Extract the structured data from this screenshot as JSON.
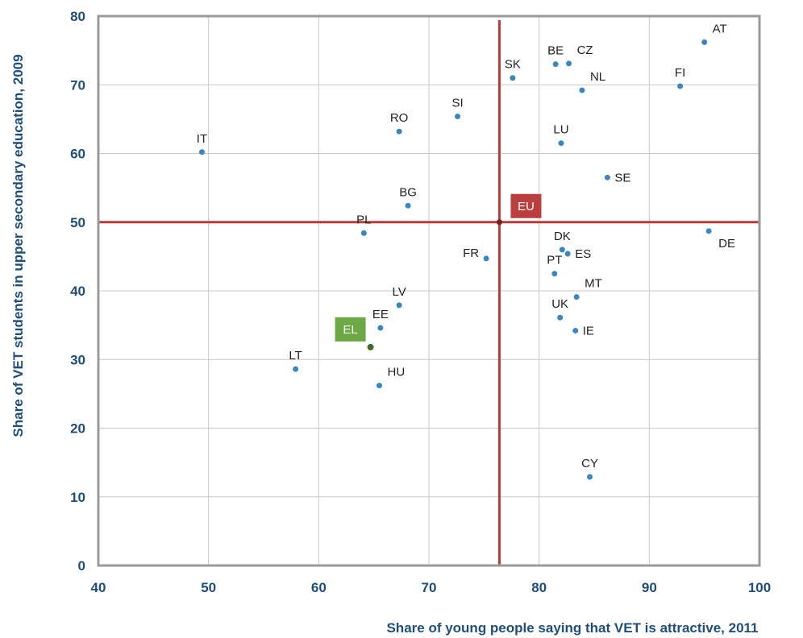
{
  "chart_data": {
    "type": "scatter",
    "title": "",
    "xlabel": "Share of young people saying that VET is attractive, 2011",
    "ylabel": "Share of VET students in upper secondary education, 2009",
    "xlim": [
      40,
      100
    ],
    "ylim": [
      0,
      80
    ],
    "x_ticks": [
      40,
      50,
      60,
      70,
      80,
      90,
      100
    ],
    "y_ticks": [
      0,
      10,
      20,
      30,
      40,
      50,
      60,
      70,
      80
    ],
    "grid": true,
    "reference_lines": {
      "x": 76.4,
      "y": 50
    },
    "colors": {
      "points": "#3a87c0",
      "reference": "#c0393b",
      "el_badge": "#6ca844",
      "el_point": "#3b6e2a",
      "axis_text": "#1f4e79",
      "grid": "#c8c8c8"
    },
    "points": [
      {
        "label": "AT",
        "x": 95.0,
        "y": 76.2,
        "label_pos": "top-right"
      },
      {
        "label": "BE",
        "x": 81.5,
        "y": 73.0,
        "label_pos": "top"
      },
      {
        "label": "CZ",
        "x": 82.7,
        "y": 73.1,
        "label_pos": "top-right"
      },
      {
        "label": "SK",
        "x": 77.6,
        "y": 71.0,
        "label_pos": "top"
      },
      {
        "label": "NL",
        "x": 83.9,
        "y": 69.2,
        "label_pos": "top-right"
      },
      {
        "label": "FI",
        "x": 92.8,
        "y": 69.8,
        "label_pos": "top"
      },
      {
        "label": "SI",
        "x": 72.6,
        "y": 65.4,
        "label_pos": "top"
      },
      {
        "label": "RO",
        "x": 67.3,
        "y": 63.2,
        "label_pos": "top"
      },
      {
        "label": "LU",
        "x": 82.0,
        "y": 61.5,
        "label_pos": "top"
      },
      {
        "label": "IT",
        "x": 49.4,
        "y": 60.2,
        "label_pos": "top"
      },
      {
        "label": "SE",
        "x": 86.2,
        "y": 56.5,
        "label_pos": "right"
      },
      {
        "label": "BG",
        "x": 68.1,
        "y": 52.4,
        "label_pos": "top"
      },
      {
        "label": "PL",
        "x": 64.1,
        "y": 48.4,
        "label_pos": "top"
      },
      {
        "label": "DE",
        "x": 95.4,
        "y": 48.7,
        "label_pos": "bottom-right"
      },
      {
        "label": "DK",
        "x": 82.1,
        "y": 46.0,
        "label_pos": "top"
      },
      {
        "label": "ES",
        "x": 82.6,
        "y": 45.4,
        "label_pos": "right"
      },
      {
        "label": "FR",
        "x": 75.2,
        "y": 44.7,
        "label_pos": "left"
      },
      {
        "label": "PT",
        "x": 81.4,
        "y": 42.5,
        "label_pos": "top"
      },
      {
        "label": "MT",
        "x": 83.4,
        "y": 39.1,
        "label_pos": "top-right"
      },
      {
        "label": "LV",
        "x": 67.3,
        "y": 37.9,
        "label_pos": "top"
      },
      {
        "label": "UK",
        "x": 81.9,
        "y": 36.1,
        "label_pos": "top"
      },
      {
        "label": "EE",
        "x": 65.6,
        "y": 34.6,
        "label_pos": "top"
      },
      {
        "label": "IE",
        "x": 83.3,
        "y": 34.2,
        "label_pos": "right"
      },
      {
        "label": "LT",
        "x": 57.9,
        "y": 28.6,
        "label_pos": "top"
      },
      {
        "label": "HU",
        "x": 65.5,
        "y": 26.2,
        "label_pos": "top-right"
      },
      {
        "label": "CY",
        "x": 84.6,
        "y": 12.9,
        "label_pos": "top"
      }
    ],
    "highlighted": [
      {
        "label": "EU",
        "x": 76.4,
        "y": 50.0,
        "badge_color": "#b9403f"
      },
      {
        "label": "EL",
        "x": 64.7,
        "y": 31.8,
        "badge_color": "#6ca844"
      }
    ]
  }
}
